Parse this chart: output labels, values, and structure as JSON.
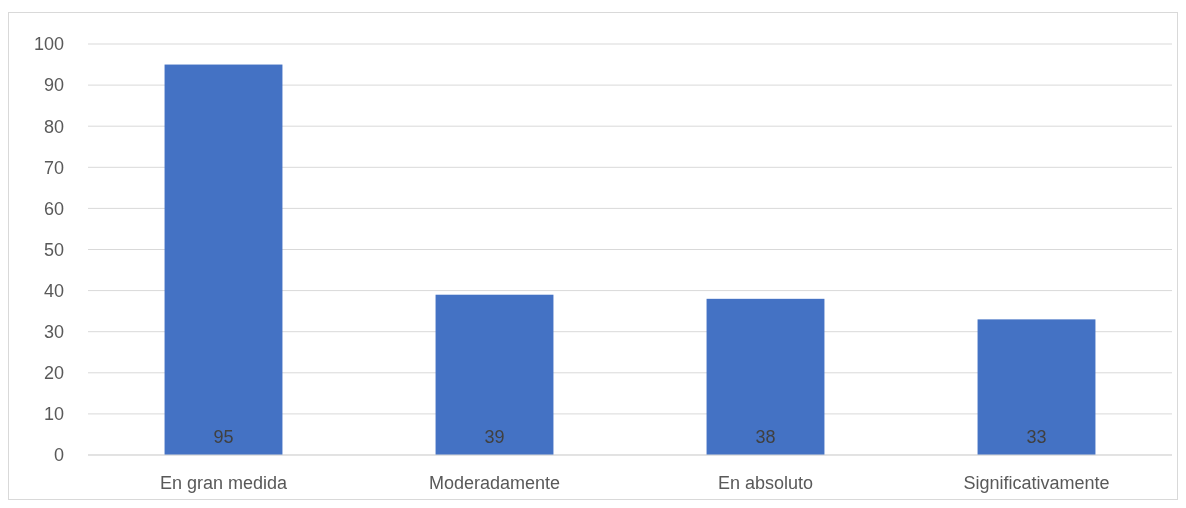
{
  "chart_data": {
    "type": "bar",
    "categories": [
      "En gran medida",
      "Moderadamente",
      "En absoluto",
      "Significativamente"
    ],
    "values": [
      95,
      39,
      38,
      33
    ],
    "color": "#4472c4",
    "ylim": [
      0,
      100
    ],
    "yticks": [
      0,
      10,
      20,
      30,
      40,
      50,
      60,
      70,
      80,
      90,
      100
    ],
    "grid": "y",
    "data_labels": true
  }
}
